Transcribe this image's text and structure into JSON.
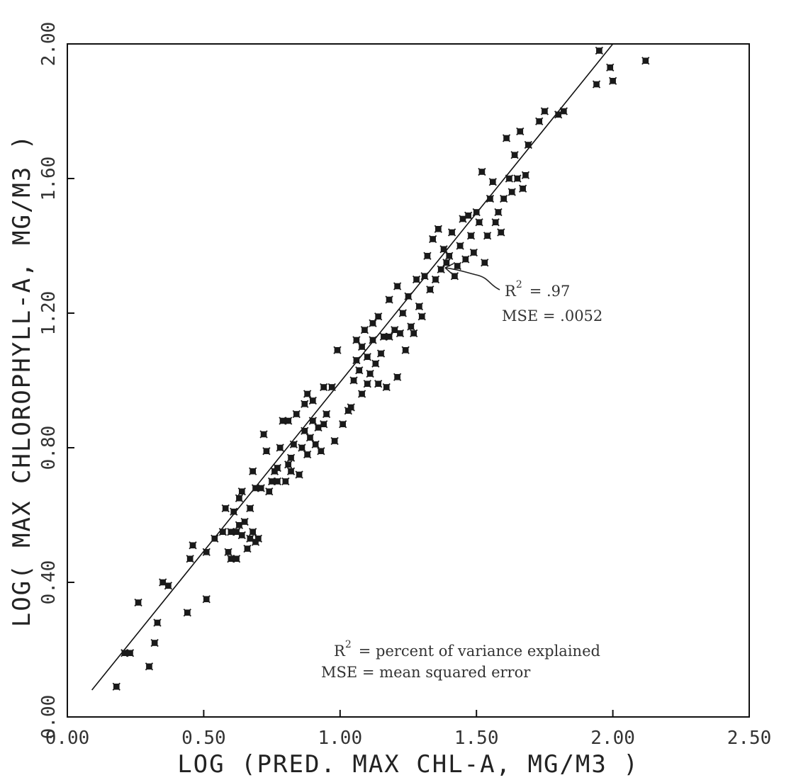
{
  "chart_data": {
    "type": "scatter",
    "xlabel": "LOG (PRED. MAX CHL-A, MG/M3 )",
    "ylabel": "LOG( MAX CHLOROPHYLL-A, MG/M3 )",
    "xlim": [
      0.0,
      2.5
    ],
    "ylim": [
      0.0,
      2.0
    ],
    "x_ticks": [
      "0.00",
      "0.50",
      "1.00",
      "1.50",
      "2.00",
      "2.50"
    ],
    "y_ticks": [
      "0.00",
      "0.40",
      "0.80",
      "1.20",
      "1.60",
      "2.00"
    ],
    "grid": false,
    "fit_line": {
      "x": [
        0.09,
        2.0
      ],
      "y": [
        0.08,
        2.0
      ]
    },
    "annotations": {
      "stats": {
        "r2_label": "R",
        "r2_sup": "2",
        "r2_value": "= .97",
        "mse": "MSE = .0052"
      },
      "legend": {
        "r2_label": "R",
        "r2_sup": "2",
        "r2_text": "= percent of variance explained",
        "mse_text": "MSE = mean squared error"
      }
    },
    "points": [
      [
        0.18,
        0.09
      ],
      [
        0.21,
        0.19
      ],
      [
        0.23,
        0.19
      ],
      [
        0.26,
        0.34
      ],
      [
        0.3,
        0.15
      ],
      [
        0.32,
        0.22
      ],
      [
        0.33,
        0.28
      ],
      [
        0.35,
        0.4
      ],
      [
        0.37,
        0.39
      ],
      [
        0.44,
        0.31
      ],
      [
        0.45,
        0.47
      ],
      [
        0.46,
        0.51
      ],
      [
        0.51,
        0.35
      ],
      [
        0.51,
        0.49
      ],
      [
        0.54,
        0.53
      ],
      [
        0.57,
        0.55
      ],
      [
        0.58,
        0.62
      ],
      [
        0.59,
        0.49
      ],
      [
        0.6,
        0.47
      ],
      [
        0.6,
        0.55
      ],
      [
        0.61,
        0.61
      ],
      [
        0.62,
        0.47
      ],
      [
        0.62,
        0.55
      ],
      [
        0.63,
        0.57
      ],
      [
        0.63,
        0.65
      ],
      [
        0.64,
        0.54
      ],
      [
        0.64,
        0.67
      ],
      [
        0.65,
        0.58
      ],
      [
        0.66,
        0.5
      ],
      [
        0.67,
        0.53
      ],
      [
        0.67,
        0.62
      ],
      [
        0.68,
        0.55
      ],
      [
        0.68,
        0.73
      ],
      [
        0.69,
        0.52
      ],
      [
        0.69,
        0.68
      ],
      [
        0.7,
        0.53
      ],
      [
        0.71,
        0.68
      ],
      [
        0.72,
        0.84
      ],
      [
        0.73,
        0.79
      ],
      [
        0.74,
        0.67
      ],
      [
        0.75,
        0.7
      ],
      [
        0.76,
        0.73
      ],
      [
        0.77,
        0.7
      ],
      [
        0.77,
        0.74
      ],
      [
        0.78,
        0.8
      ],
      [
        0.79,
        0.88
      ],
      [
        0.8,
        0.7
      ],
      [
        0.81,
        0.75
      ],
      [
        0.81,
        0.88
      ],
      [
        0.82,
        0.73
      ],
      [
        0.82,
        0.77
      ],
      [
        0.83,
        0.81
      ],
      [
        0.84,
        0.9
      ],
      [
        0.85,
        0.72
      ],
      [
        0.86,
        0.8
      ],
      [
        0.87,
        0.85
      ],
      [
        0.87,
        0.93
      ],
      [
        0.88,
        0.78
      ],
      [
        0.88,
        0.96
      ],
      [
        0.89,
        0.83
      ],
      [
        0.9,
        0.88
      ],
      [
        0.9,
        0.94
      ],
      [
        0.91,
        0.81
      ],
      [
        0.92,
        0.86
      ],
      [
        0.93,
        0.79
      ],
      [
        0.94,
        0.87
      ],
      [
        0.94,
        0.98
      ],
      [
        0.95,
        0.9
      ],
      [
        0.97,
        0.98
      ],
      [
        0.98,
        0.82
      ],
      [
        0.99,
        1.09
      ],
      [
        1.01,
        0.87
      ],
      [
        1.03,
        0.91
      ],
      [
        1.04,
        0.92
      ],
      [
        1.05,
        1.0
      ],
      [
        1.06,
        1.06
      ],
      [
        1.06,
        1.12
      ],
      [
        1.07,
        1.03
      ],
      [
        1.08,
        0.96
      ],
      [
        1.08,
        1.1
      ],
      [
        1.09,
        1.15
      ],
      [
        1.1,
        0.99
      ],
      [
        1.1,
        1.07
      ],
      [
        1.11,
        1.02
      ],
      [
        1.12,
        1.12
      ],
      [
        1.12,
        1.17
      ],
      [
        1.13,
        1.05
      ],
      [
        1.14,
        0.99
      ],
      [
        1.14,
        1.19
      ],
      [
        1.15,
        1.08
      ],
      [
        1.16,
        1.13
      ],
      [
        1.17,
        0.98
      ],
      [
        1.18,
        1.13
      ],
      [
        1.18,
        1.24
      ],
      [
        1.2,
        1.15
      ],
      [
        1.21,
        1.01
      ],
      [
        1.21,
        1.28
      ],
      [
        1.22,
        1.14
      ],
      [
        1.23,
        1.2
      ],
      [
        1.24,
        1.09
      ],
      [
        1.25,
        1.25
      ],
      [
        1.26,
        1.16
      ],
      [
        1.27,
        1.14
      ],
      [
        1.28,
        1.3
      ],
      [
        1.29,
        1.22
      ],
      [
        1.3,
        1.19
      ],
      [
        1.31,
        1.31
      ],
      [
        1.32,
        1.37
      ],
      [
        1.33,
        1.27
      ],
      [
        1.34,
        1.42
      ],
      [
        1.35,
        1.3
      ],
      [
        1.36,
        1.45
      ],
      [
        1.37,
        1.33
      ],
      [
        1.38,
        1.39
      ],
      [
        1.39,
        1.35
      ],
      [
        1.4,
        1.37
      ],
      [
        1.41,
        1.44
      ],
      [
        1.42,
        1.31
      ],
      [
        1.43,
        1.34
      ],
      [
        1.44,
        1.4
      ],
      [
        1.45,
        1.48
      ],
      [
        1.46,
        1.36
      ],
      [
        1.47,
        1.49
      ],
      [
        1.48,
        1.43
      ],
      [
        1.49,
        1.38
      ],
      [
        1.5,
        1.5
      ],
      [
        1.51,
        1.47
      ],
      [
        1.52,
        1.62
      ],
      [
        1.53,
        1.35
      ],
      [
        1.54,
        1.43
      ],
      [
        1.55,
        1.54
      ],
      [
        1.56,
        1.59
      ],
      [
        1.57,
        1.47
      ],
      [
        1.58,
        1.5
      ],
      [
        1.59,
        1.44
      ],
      [
        1.6,
        1.54
      ],
      [
        1.61,
        1.72
      ],
      [
        1.62,
        1.6
      ],
      [
        1.63,
        1.56
      ],
      [
        1.64,
        1.67
      ],
      [
        1.65,
        1.6
      ],
      [
        1.66,
        1.74
      ],
      [
        1.67,
        1.57
      ],
      [
        1.68,
        1.61
      ],
      [
        1.69,
        1.7
      ],
      [
        1.73,
        1.77
      ],
      [
        1.75,
        1.8
      ],
      [
        1.8,
        1.79
      ],
      [
        1.82,
        1.8
      ],
      [
        1.94,
        1.88
      ],
      [
        1.95,
        1.98
      ],
      [
        1.99,
        1.93
      ],
      [
        2.0,
        1.89
      ],
      [
        2.12,
        1.95
      ]
    ]
  }
}
